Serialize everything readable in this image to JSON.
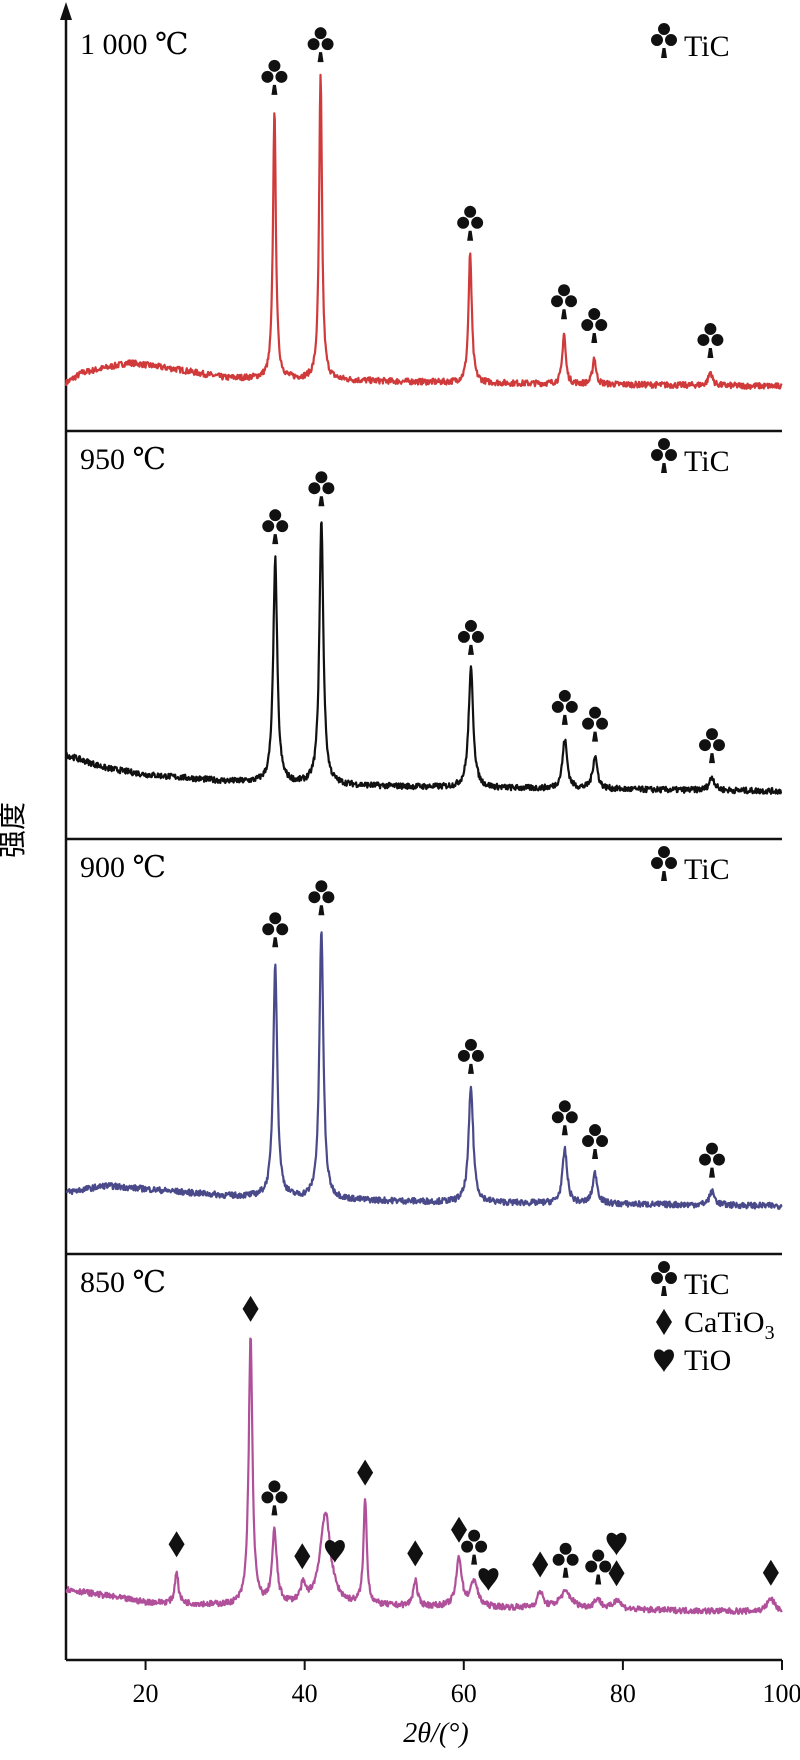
{
  "chart_data": {
    "type": "line",
    "xlabel": "2θ/(°)",
    "ylabel": "强度",
    "xlim": [
      10,
      100
    ],
    "xticks": [
      20,
      40,
      60,
      80,
      100
    ],
    "yticks": [],
    "panels": [
      {
        "label": "1 000 ℃",
        "color": "#d03a3a",
        "legend": [
          {
            "symbol": "club",
            "text": "TiC"
          }
        ],
        "baseline": 0.03,
        "background": [
          [
            10,
            0.03
          ],
          [
            12,
            0.06
          ],
          [
            18,
            0.09
          ],
          [
            24,
            0.07
          ],
          [
            30,
            0.045
          ],
          [
            40,
            0.04
          ],
          [
            60,
            0.03
          ],
          [
            100,
            0.02
          ]
        ],
        "peaks": [
          {
            "x": 36.2,
            "h": 0.8,
            "w": 0.22
          },
          {
            "x": 42.0,
            "h": 0.9,
            "w": 0.22
          },
          {
            "x": 60.8,
            "h": 0.38,
            "w": 0.25
          },
          {
            "x": 72.6,
            "h": 0.15,
            "w": 0.25
          },
          {
            "x": 76.4,
            "h": 0.08,
            "w": 0.25
          },
          {
            "x": 91.0,
            "h": 0.04,
            "w": 0.3
          }
        ],
        "markers": [
          {
            "x": 36.2,
            "symbol": "club"
          },
          {
            "x": 42.0,
            "symbol": "club"
          },
          {
            "x": 60.8,
            "symbol": "club"
          },
          {
            "x": 72.6,
            "symbol": "club"
          },
          {
            "x": 76.4,
            "symbol": "club"
          },
          {
            "x": 91.0,
            "symbol": "club"
          }
        ]
      },
      {
        "label": "950 ℃",
        "color": "#111111",
        "legend": [
          {
            "symbol": "club",
            "text": "TiC"
          }
        ],
        "baseline": 0.04,
        "background": [
          [
            10,
            0.14
          ],
          [
            15,
            0.1
          ],
          [
            20,
            0.08
          ],
          [
            30,
            0.06
          ],
          [
            40,
            0.05
          ],
          [
            60,
            0.04
          ],
          [
            100,
            0.03
          ]
        ],
        "peaks": [
          {
            "x": 36.3,
            "h": 0.68,
            "w": 0.3
          },
          {
            "x": 42.1,
            "h": 0.8,
            "w": 0.3
          },
          {
            "x": 60.9,
            "h": 0.36,
            "w": 0.35
          },
          {
            "x": 72.7,
            "h": 0.15,
            "w": 0.35
          },
          {
            "x": 76.5,
            "h": 0.1,
            "w": 0.35
          },
          {
            "x": 91.2,
            "h": 0.04,
            "w": 0.4
          }
        ],
        "markers": [
          {
            "x": 36.3,
            "symbol": "club"
          },
          {
            "x": 42.1,
            "symbol": "club"
          },
          {
            "x": 60.9,
            "symbol": "club"
          },
          {
            "x": 72.7,
            "symbol": "club"
          },
          {
            "x": 76.5,
            "symbol": "club"
          },
          {
            "x": 91.2,
            "symbol": "club"
          }
        ]
      },
      {
        "label": "900 ℃",
        "color": "#4a4a8a",
        "legend": [
          {
            "symbol": "club",
            "text": "TiC"
          }
        ],
        "baseline": 0.05,
        "background": [
          [
            10,
            0.07
          ],
          [
            15,
            0.09
          ],
          [
            20,
            0.08
          ],
          [
            30,
            0.06
          ],
          [
            40,
            0.05
          ],
          [
            60,
            0.04
          ],
          [
            100,
            0.03
          ]
        ],
        "peaks": [
          {
            "x": 36.3,
            "h": 0.7,
            "w": 0.3
          },
          {
            "x": 42.1,
            "h": 0.8,
            "w": 0.3
          },
          {
            "x": 60.9,
            "h": 0.34,
            "w": 0.35
          },
          {
            "x": 72.7,
            "h": 0.16,
            "w": 0.35
          },
          {
            "x": 76.5,
            "h": 0.09,
            "w": 0.35
          },
          {
            "x": 91.2,
            "h": 0.04,
            "w": 0.4
          }
        ],
        "markers": [
          {
            "x": 36.3,
            "symbol": "club"
          },
          {
            "x": 42.1,
            "symbol": "club"
          },
          {
            "x": 60.9,
            "symbol": "club"
          },
          {
            "x": 72.7,
            "symbol": "club"
          },
          {
            "x": 76.5,
            "symbol": "club"
          },
          {
            "x": 91.2,
            "symbol": "club"
          }
        ]
      },
      {
        "label": "850 ℃",
        "color": "#b0509a",
        "legend": [
          {
            "symbol": "club",
            "text": "TiC"
          },
          {
            "symbol": "diamond",
            "text": "CaTiO",
            "sub": "3"
          },
          {
            "symbol": "heart",
            "text": "TiO"
          }
        ],
        "baseline": 0.06,
        "background": [
          [
            10,
            0.1
          ],
          [
            15,
            0.08
          ],
          [
            20,
            0.06
          ],
          [
            30,
            0.05
          ],
          [
            40,
            0.05
          ],
          [
            60,
            0.045
          ],
          [
            100,
            0.03
          ]
        ],
        "peaks": [
          {
            "x": 23.9,
            "h": 0.1,
            "w": 0.25
          },
          {
            "x": 33.2,
            "h": 0.82,
            "w": 0.28
          },
          {
            "x": 36.2,
            "h": 0.22,
            "w": 0.35
          },
          {
            "x": 39.8,
            "h": 0.05,
            "w": 0.4
          },
          {
            "x": 42.6,
            "h": 0.28,
            "w": 0.8
          },
          {
            "x": 47.6,
            "h": 0.32,
            "w": 0.25
          },
          {
            "x": 53.9,
            "h": 0.08,
            "w": 0.3
          },
          {
            "x": 59.4,
            "h": 0.15,
            "w": 0.4
          },
          {
            "x": 61.3,
            "h": 0.08,
            "w": 0.5
          },
          {
            "x": 69.6,
            "h": 0.05,
            "w": 0.4
          },
          {
            "x": 72.8,
            "h": 0.05,
            "w": 0.9
          },
          {
            "x": 76.8,
            "h": 0.03,
            "w": 0.5
          },
          {
            "x": 79.3,
            "h": 0.03,
            "w": 0.5
          },
          {
            "x": 98.6,
            "h": 0.04,
            "w": 0.6
          }
        ],
        "markers": [
          {
            "x": 23.9,
            "symbol": "diamond"
          },
          {
            "x": 33.2,
            "symbol": "diamond"
          },
          {
            "x": 36.2,
            "symbol": "club"
          },
          {
            "x": 39.7,
            "symbol": "diamond"
          },
          {
            "x": 43.8,
            "symbol": "heart"
          },
          {
            "x": 47.6,
            "symbol": "diamond"
          },
          {
            "x": 53.9,
            "symbol": "diamond"
          },
          {
            "x": 59.4,
            "symbol": "diamond"
          },
          {
            "x": 61.3,
            "symbol": "club"
          },
          {
            "x": 63.1,
            "symbol": "heart"
          },
          {
            "x": 69.6,
            "symbol": "diamond"
          },
          {
            "x": 72.8,
            "symbol": "club"
          },
          {
            "x": 76.9,
            "symbol": "club"
          },
          {
            "x": 79.2,
            "symbol": "diamond"
          },
          {
            "x": 79.2,
            "symbol": "heart",
            "stack": 1
          },
          {
            "x": 98.6,
            "symbol": "diamond"
          }
        ]
      }
    ]
  }
}
